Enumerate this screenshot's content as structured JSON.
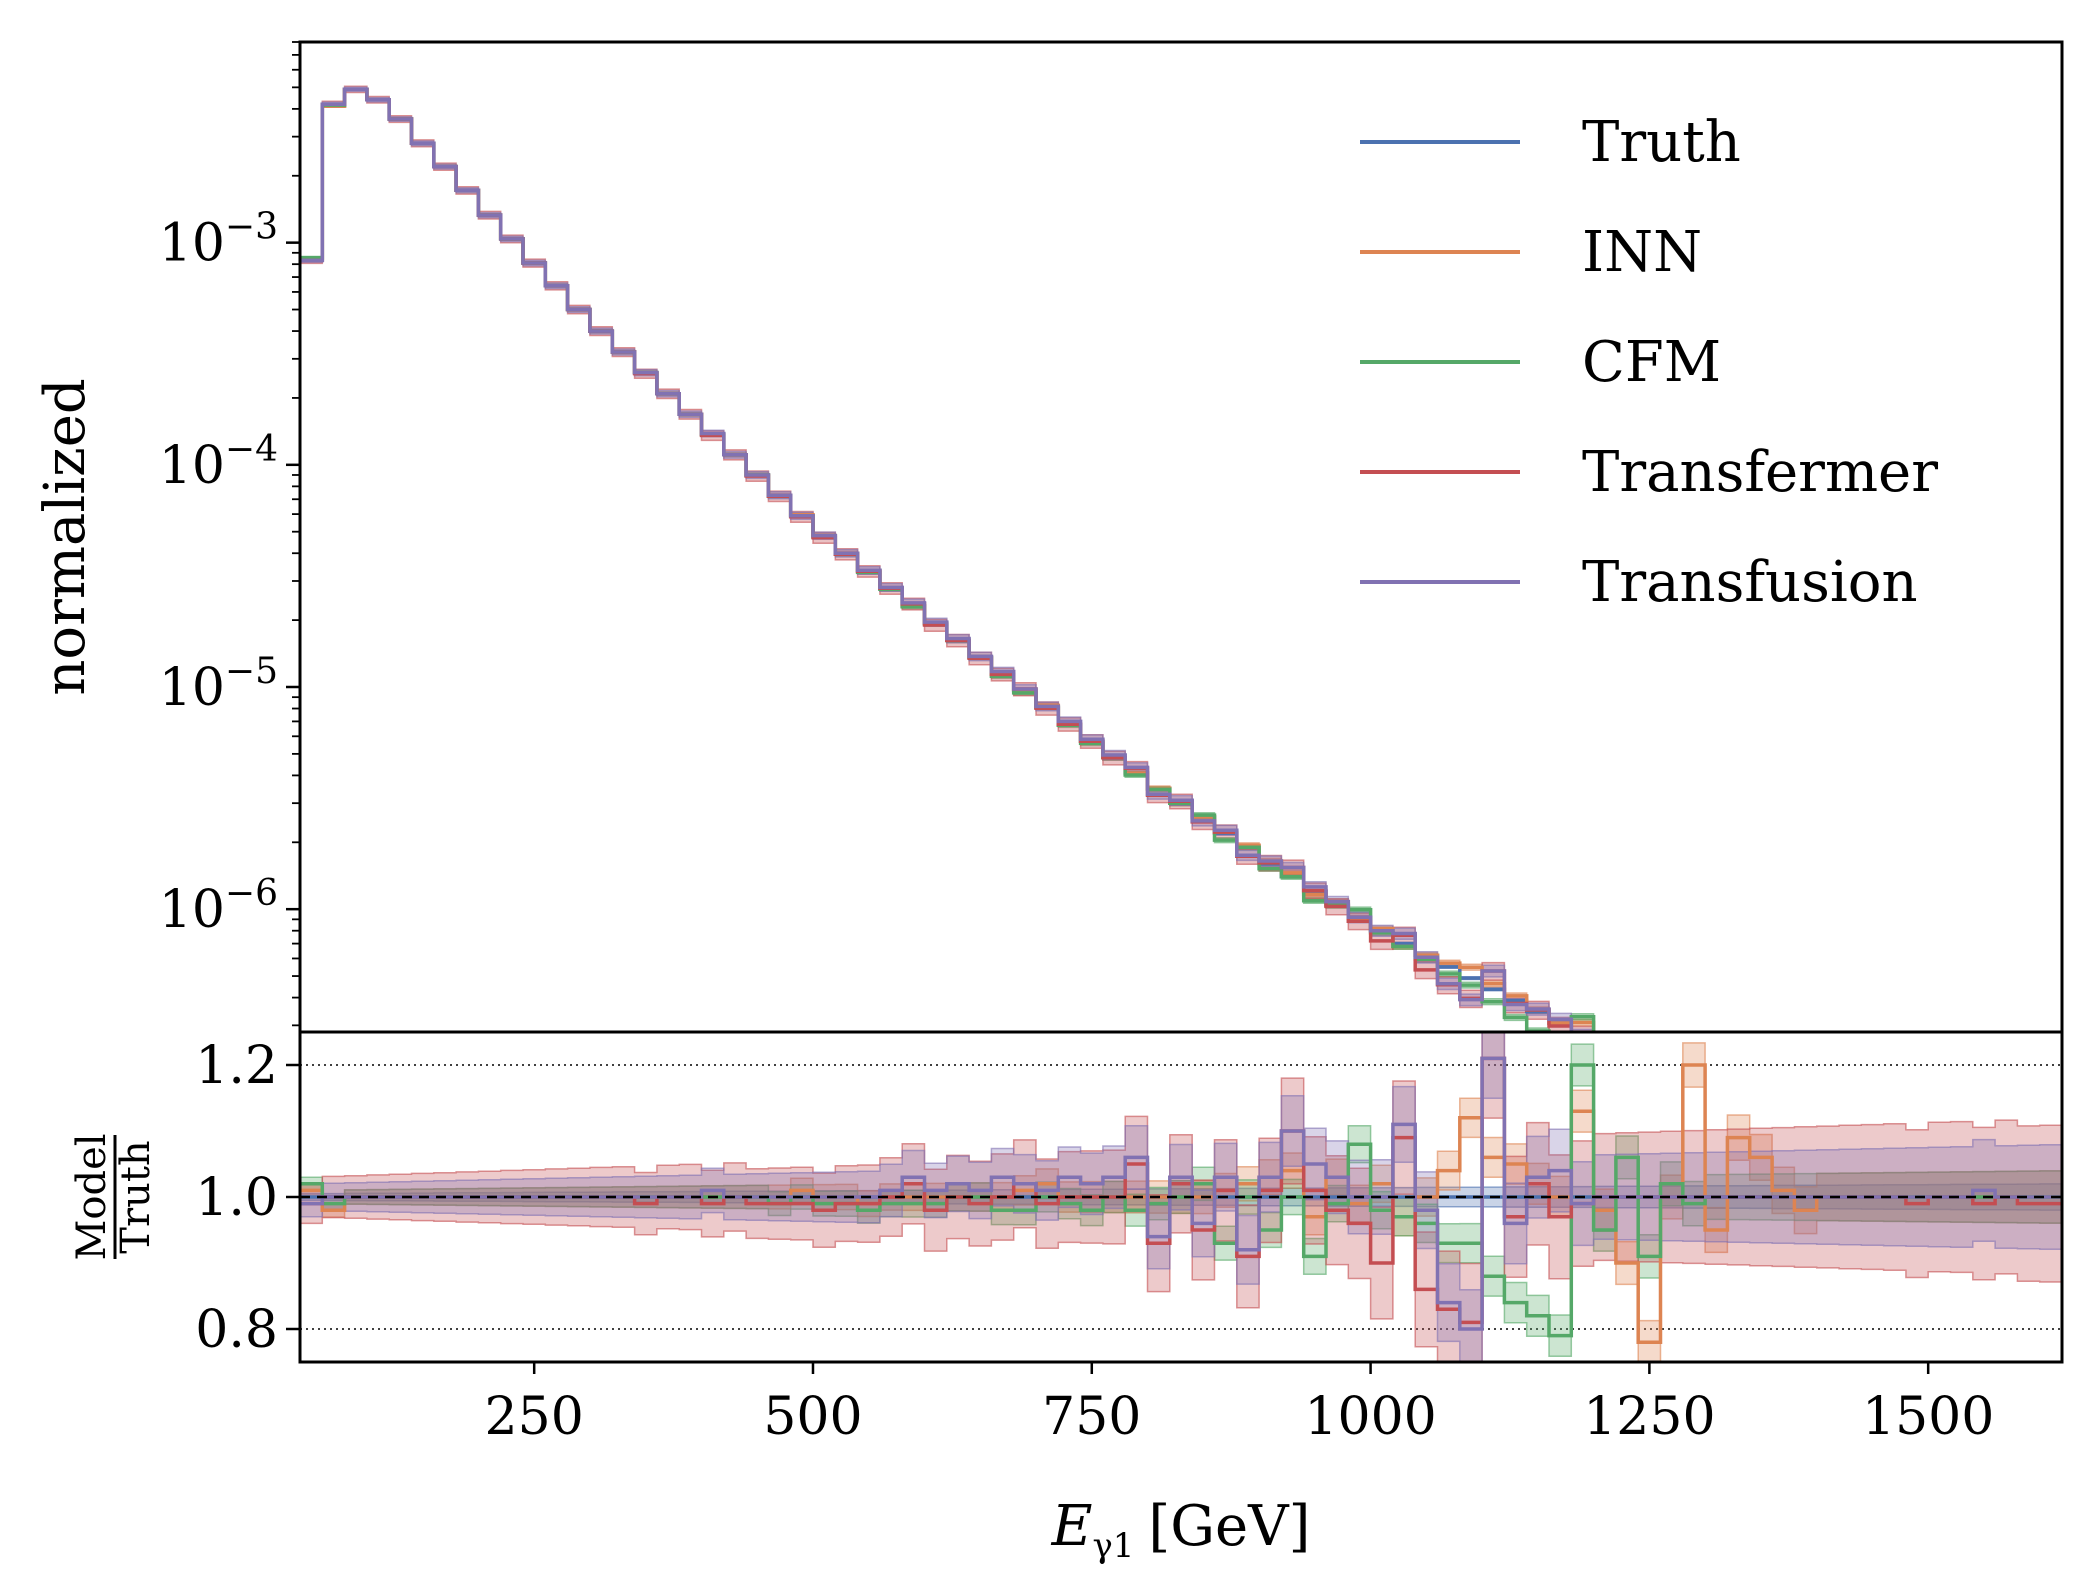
{
  "chart_data": {
    "type": "line",
    "style": "step histogram with uncertainty bands, log-scale main panel and ratio panel",
    "x_axis": {
      "label_main": "E",
      "label_sub": "γ1",
      "label_unit": "[GeV]",
      "range": [
        40,
        1620
      ],
      "ticks": [
        250,
        500,
        750,
        1000,
        1250,
        1500
      ],
      "tick_labels": [
        "250",
        "500",
        "750",
        "1000",
        "1250",
        "1500"
      ]
    },
    "top_panel": {
      "ylabel": "normalized",
      "yscale": "log",
      "ylim": [
        2.8e-07,
        0.008
      ],
      "major_ticks": [
        {
          "value": 0.001,
          "base": "10",
          "exp": "−3"
        },
        {
          "value": 0.0001,
          "base": "10",
          "exp": "−4"
        },
        {
          "value": 1e-05,
          "base": "10",
          "exp": "−5"
        },
        {
          "value": 1e-06,
          "base": "10",
          "exp": "−6"
        }
      ],
      "legend_position": "top-right",
      "bin_edges": [
        40,
        60,
        80,
        100,
        120,
        140,
        160,
        180,
        200,
        220,
        240,
        260,
        280,
        300,
        320,
        340,
        360,
        380,
        400,
        420,
        440,
        460,
        480,
        500,
        520,
        540,
        560,
        580,
        600,
        620,
        640,
        660,
        680,
        700,
        720,
        740,
        760,
        780,
        800,
        820,
        840,
        860,
        880,
        900,
        920,
        940,
        960,
        980,
        1000,
        1020,
        1040,
        1060,
        1080,
        1100,
        1120,
        1140,
        1160,
        1180,
        1200,
        1220,
        1240,
        1260,
        1280,
        1300,
        1320,
        1340,
        1360,
        1380,
        1400,
        1420,
        1440,
        1460,
        1480,
        1500,
        1520,
        1540,
        1560,
        1580,
        1600,
        1620
      ],
      "truth_values": [
        0.00084,
        0.0042,
        0.0049,
        0.0044,
        0.0036,
        0.0028,
        0.0022,
        0.00172,
        0.00133,
        0.00104,
        0.00081,
        0.00064,
        0.0005,
        0.0004,
        0.000322,
        0.00026,
        0.000209,
        0.000169,
        0.000137,
        0.000111,
        9e-05,
        7.3e-05,
        5.9e-05,
        4.8e-05,
        4e-05,
        3.35e-05,
        2.78e-05,
        2.32e-05,
        1.94e-05,
        1.62e-05,
        1.36e-05,
        1.14e-05,
        9.6e-06,
        8.1e-06,
        6.8e-06,
        5.7e-06,
        4.8e-06,
        4.1e-06,
        3.5e-06,
        3e-06,
        2.6e-06,
        2.2e-06,
        1.9e-06,
        1.6e-06,
        1.4e-06,
        1.2e-06,
        1.05e-06,
        9.2e-07,
        8e-07,
        7e-07,
        6.2e-07,
        5.5e-07
      ]
    },
    "bottom_panel": {
      "ylabel_numerator": "Model",
      "ylabel_denominator": "Truth",
      "ylim": [
        0.75,
        1.25
      ],
      "ticks": [
        0.8,
        1.0,
        1.2
      ],
      "tick_labels": [
        "0.8",
        "1.0",
        "1.2"
      ],
      "dotted_lines": [
        0.8,
        1.2
      ],
      "dashed_line": 1.0
    },
    "series": [
      {
        "name": "Truth",
        "color": "#4c72b0",
        "ratio": [
          1.0,
          1.0,
          1.0,
          1.0,
          1.0,
          1.0,
          1.0,
          1.0,
          1.0,
          1.0,
          1.0,
          1.0,
          1.0,
          1.0,
          1.0,
          1.0,
          1.0,
          1.0,
          1.0,
          1.0,
          1.0,
          1.0,
          1.0,
          1.0,
          1.0,
          1.0,
          1.0,
          1.0,
          1.0,
          1.0,
          1.0,
          1.0,
          1.0,
          1.0,
          1.0,
          1.0,
          1.0,
          1.0,
          1.0,
          1.0,
          1.0,
          1.0,
          1.0,
          1.0,
          1.0,
          1.0,
          1.0,
          1.0,
          1.0,
          1.0,
          1.0,
          1.0,
          1.0,
          1.0,
          1.0,
          1.0,
          1.0,
          1.0,
          1.0,
          1.0,
          1.0,
          1.0,
          1.0,
          1.0,
          1.0,
          1.0,
          1.0,
          1.0,
          1.0,
          1.0,
          1.0,
          1.0,
          1.0,
          1.0,
          1.0,
          1.0,
          1.0,
          1.0,
          1.0
        ],
        "band": 0.01
      },
      {
        "name": "INN",
        "color": "#dd8452",
        "ratio": [
          1.01,
          0.98,
          1.0,
          1.0,
          1.0,
          1.0,
          1.0,
          1.0,
          1.0,
          1.0,
          1.0,
          1.0,
          1.0,
          1.0,
          1.0,
          1.0,
          1.0,
          1.0,
          1.0,
          1.0,
          1.0,
          1.0,
          1.01,
          1.0,
          1.0,
          0.99,
          1.0,
          1.0,
          1.0,
          1.0,
          1.0,
          1.0,
          1.01,
          1.02,
          1.0,
          1.0,
          1.0,
          1.0,
          1.0,
          1.0,
          1.0,
          1.01,
          1.02,
          1.03,
          1.04,
          0.97,
          1.03,
          0.99,
          1.02,
          0.97,
          1.0,
          1.04,
          1.12,
          1.06,
          1.05,
          1.02,
          1.0,
          1.13,
          0.98,
          0.9,
          0.78,
          1.0,
          1.2,
          0.95,
          1.09,
          1.06
        ],
        "band": 0.02
      },
      {
        "name": "CFM",
        "color": "#55a868",
        "ratio": [
          1.02,
          0.99,
          1.0,
          1.0,
          1.0,
          1.0,
          1.0,
          1.0,
          1.0,
          1.0,
          1.0,
          1.0,
          1.0,
          1.0,
          1.0,
          1.0,
          1.0,
          1.0,
          1.0,
          1.0,
          1.0,
          0.99,
          1.0,
          0.99,
          0.99,
          0.98,
          0.99,
          0.99,
          0.99,
          1.0,
          1.0,
          0.98,
          0.98,
          1.0,
          0.99,
          0.98,
          1.0,
          0.98,
          0.99,
          1.0,
          1.02,
          0.93,
          1.0,
          0.95,
          1.0,
          0.91,
          0.99,
          1.08,
          0.98,
          0.97,
          0.96,
          0.93,
          0.93,
          0.88,
          0.84,
          0.82,
          0.79,
          1.2,
          0.95,
          1.06,
          0.91
        ],
        "band": 0.02
      },
      {
        "name": "Transfermer",
        "color": "#c44e52",
        "ratio": [
          0.99,
          1.0,
          1.0,
          1.0,
          1.0,
          1.0,
          1.0,
          1.0,
          1.0,
          1.0,
          1.0,
          1.0,
          1.0,
          1.0,
          1.0,
          0.99,
          1.0,
          1.0,
          0.99,
          1.0,
          0.99,
          0.99,
          0.99,
          0.98,
          0.99,
          0.99,
          1.0,
          1.02,
          0.98,
          1.0,
          0.99,
          1.0,
          1.02,
          0.99,
          1.0,
          1.0,
          1.0,
          1.05,
          0.93,
          1.02,
          0.95,
          1.01,
          0.91,
          1.01,
          1.1,
          1.01,
          0.98,
          0.96,
          0.9,
          1.09,
          0.86,
          0.83,
          0.81,
          1.21,
          0.97,
          1.02,
          0.97
        ],
        "band": 0.06
      },
      {
        "name": "Transfusion",
        "color": "#8172b2",
        "ratio": [
          0.99,
          1.0,
          1.0,
          1.0,
          1.0,
          1.0,
          1.0,
          1.0,
          1.0,
          1.0,
          1.0,
          1.0,
          1.0,
          1.0,
          1.0,
          1.0,
          1.0,
          1.0,
          1.01,
          1.0,
          1.0,
          1.0,
          1.0,
          1.0,
          1.0,
          1.0,
          1.01,
          1.03,
          1.01,
          1.02,
          1.01,
          1.03,
          1.02,
          1.01,
          1.03,
          1.02,
          1.03,
          1.06,
          0.94,
          1.03,
          0.96,
          1.03,
          0.92,
          1.03,
          1.1,
          1.05,
          1.03,
          1.0,
          1.0,
          1.11,
          0.98,
          0.84,
          0.8,
          1.21,
          0.96,
          1.03,
          1.04
        ],
        "band": 0.04
      }
    ]
  }
}
